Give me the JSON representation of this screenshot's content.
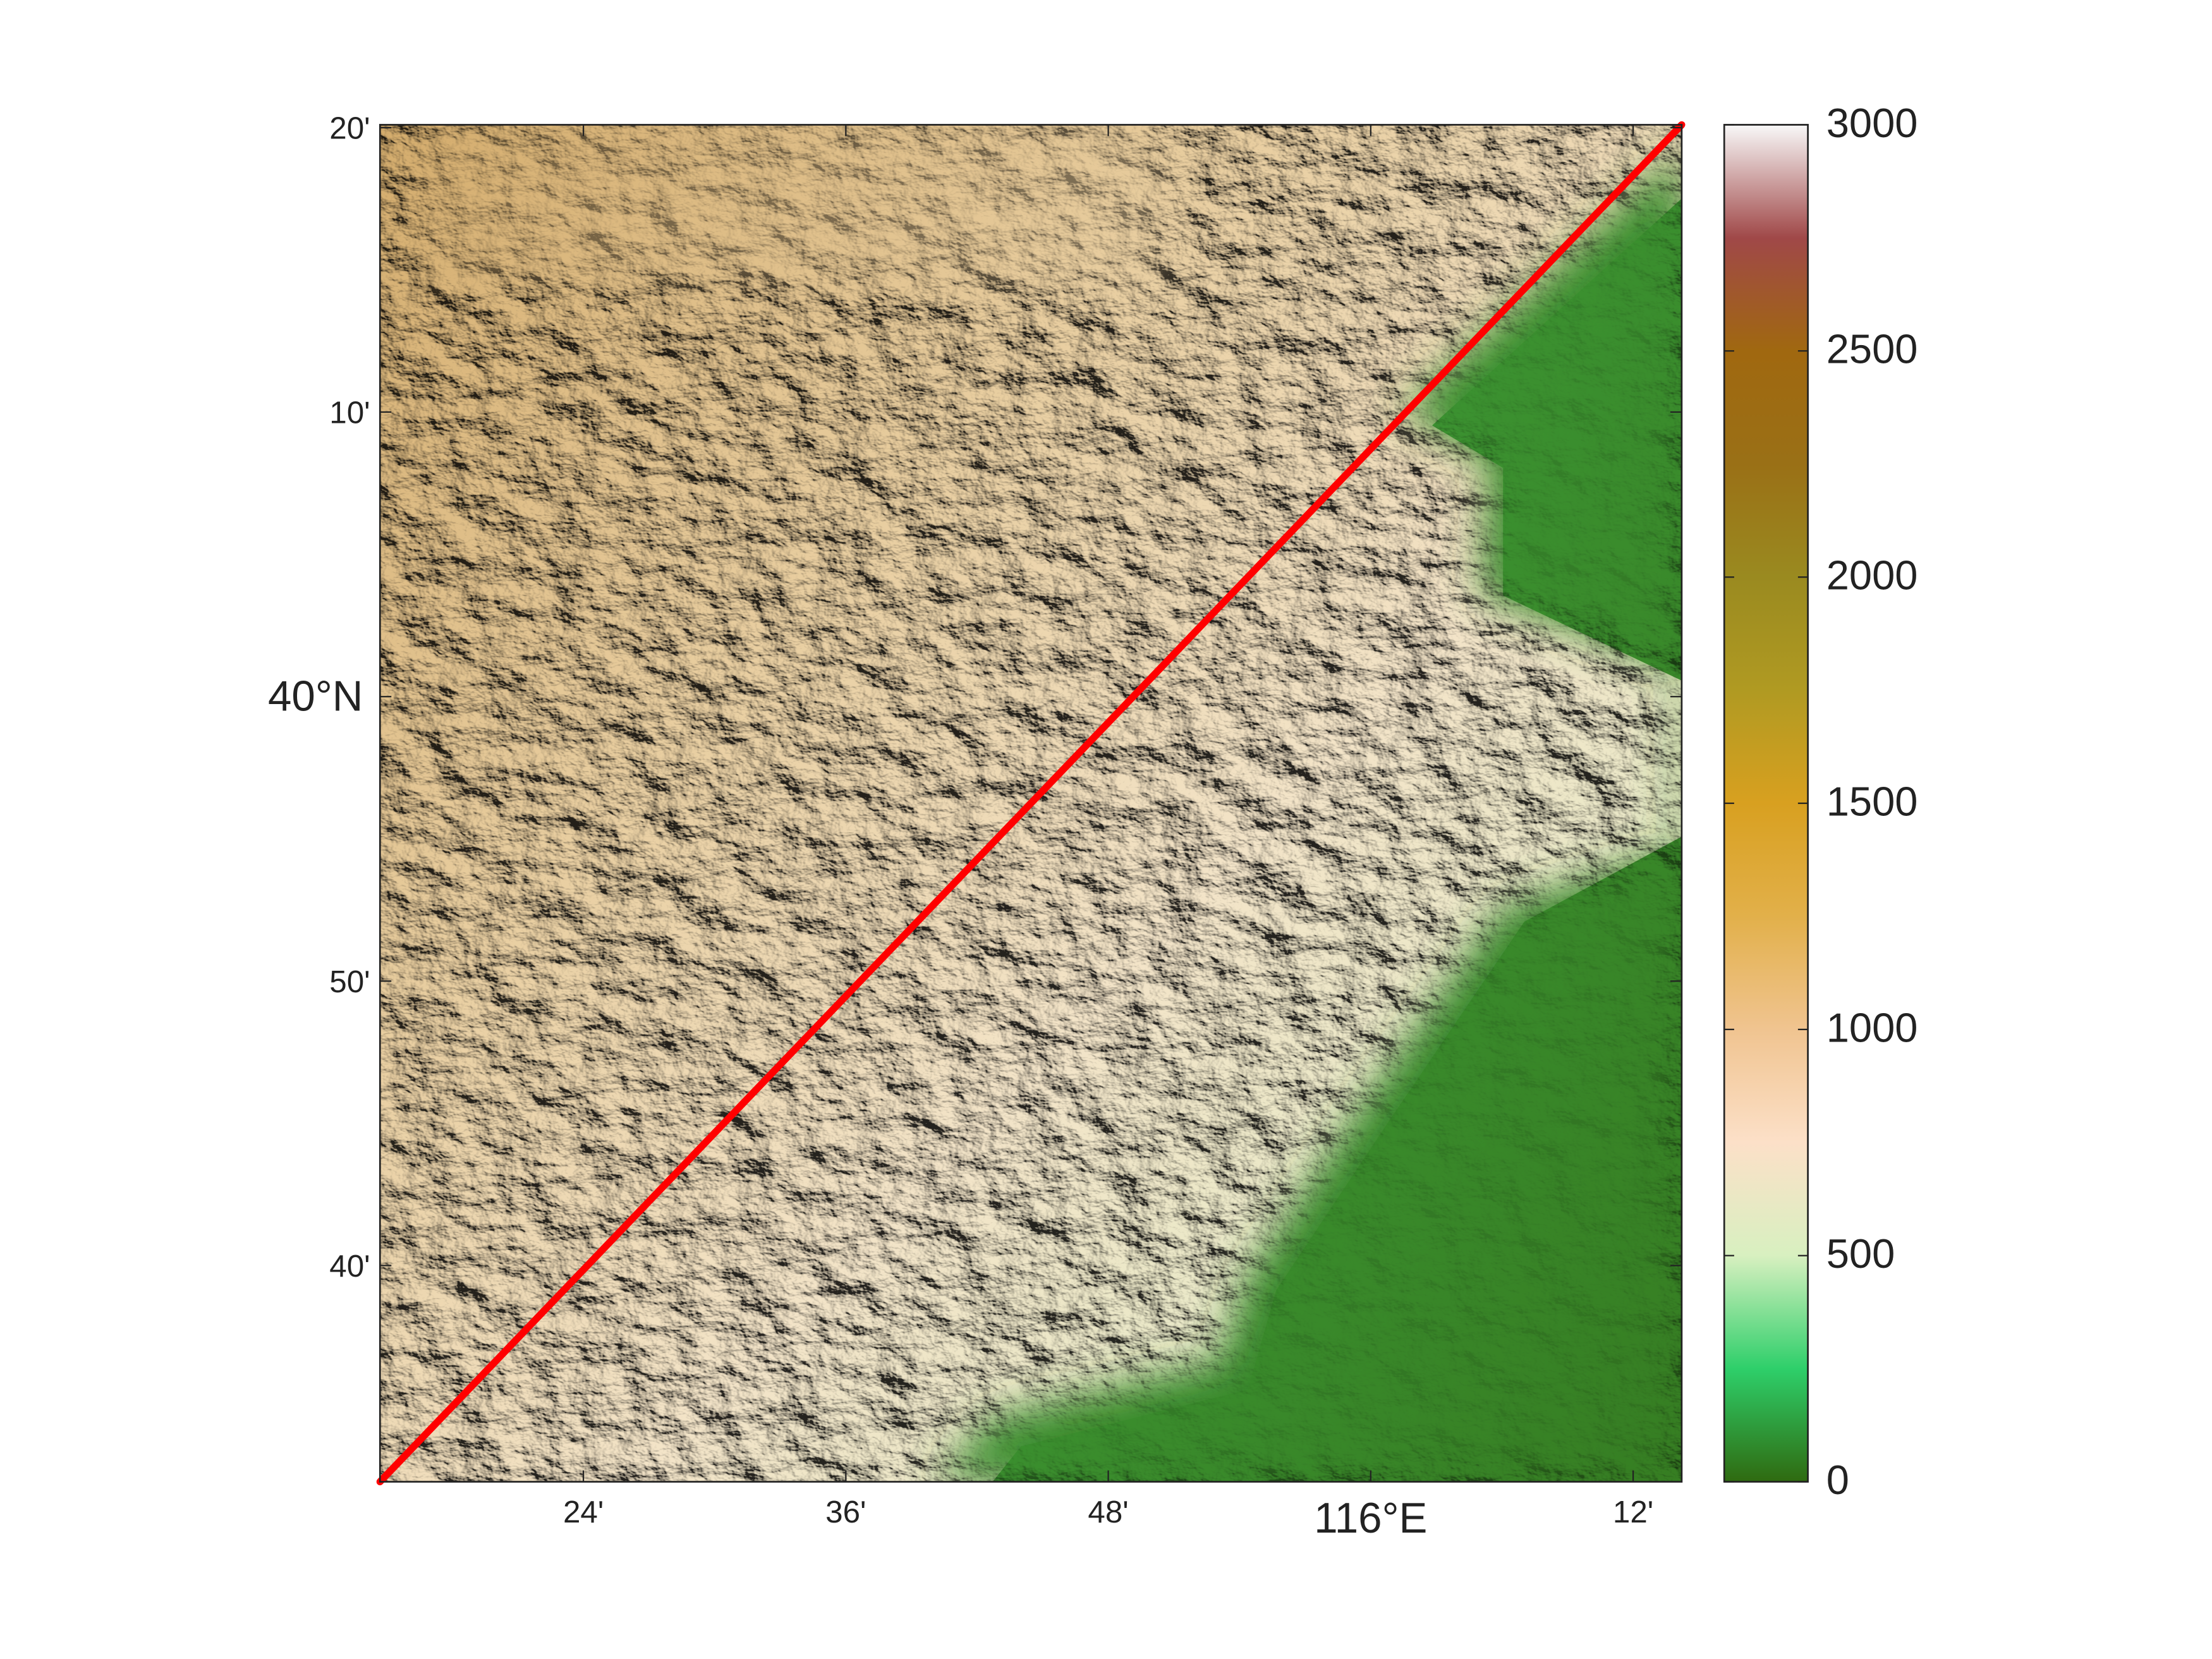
{
  "map": {
    "lon_lim": [
      115.245,
      116.237
    ],
    "lat_lim": [
      39.54,
      40.335
    ],
    "lon_ticks": [
      {
        "value": 115.4,
        "label": "24'"
      },
      {
        "value": 115.6,
        "label": "36'"
      },
      {
        "value": 115.8,
        "label": "48'"
      },
      {
        "value": 116,
        "label": "116°E"
      },
      {
        "value": 116.2,
        "label": "12'"
      }
    ],
    "lat_ticks": [
      {
        "value": 40.3333,
        "label": "20'"
      },
      {
        "value": 40.1667,
        "label": "10'"
      },
      {
        "value": 40,
        "label": "40°N"
      },
      {
        "value": 39.8333,
        "label": "50'"
      },
      {
        "value": 39.6667,
        "label": "40'"
      }
    ],
    "line_color": "#ff0000"
  },
  "colorbar": {
    "clim": [
      0,
      3000
    ],
    "ticks": [
      0,
      500,
      1000,
      1500,
      2000,
      2500,
      3000
    ],
    "colormap": [
      "#2f6a10",
      "#2ecf6a",
      "#d8f0c0",
      "#fce0c8",
      "#f0c490",
      "#e2b04a",
      "#d8a020",
      "#b09a22",
      "#9a8a20",
      "#9a7016",
      "#a06810",
      "#a04848",
      "#f8f8f8"
    ]
  }
}
